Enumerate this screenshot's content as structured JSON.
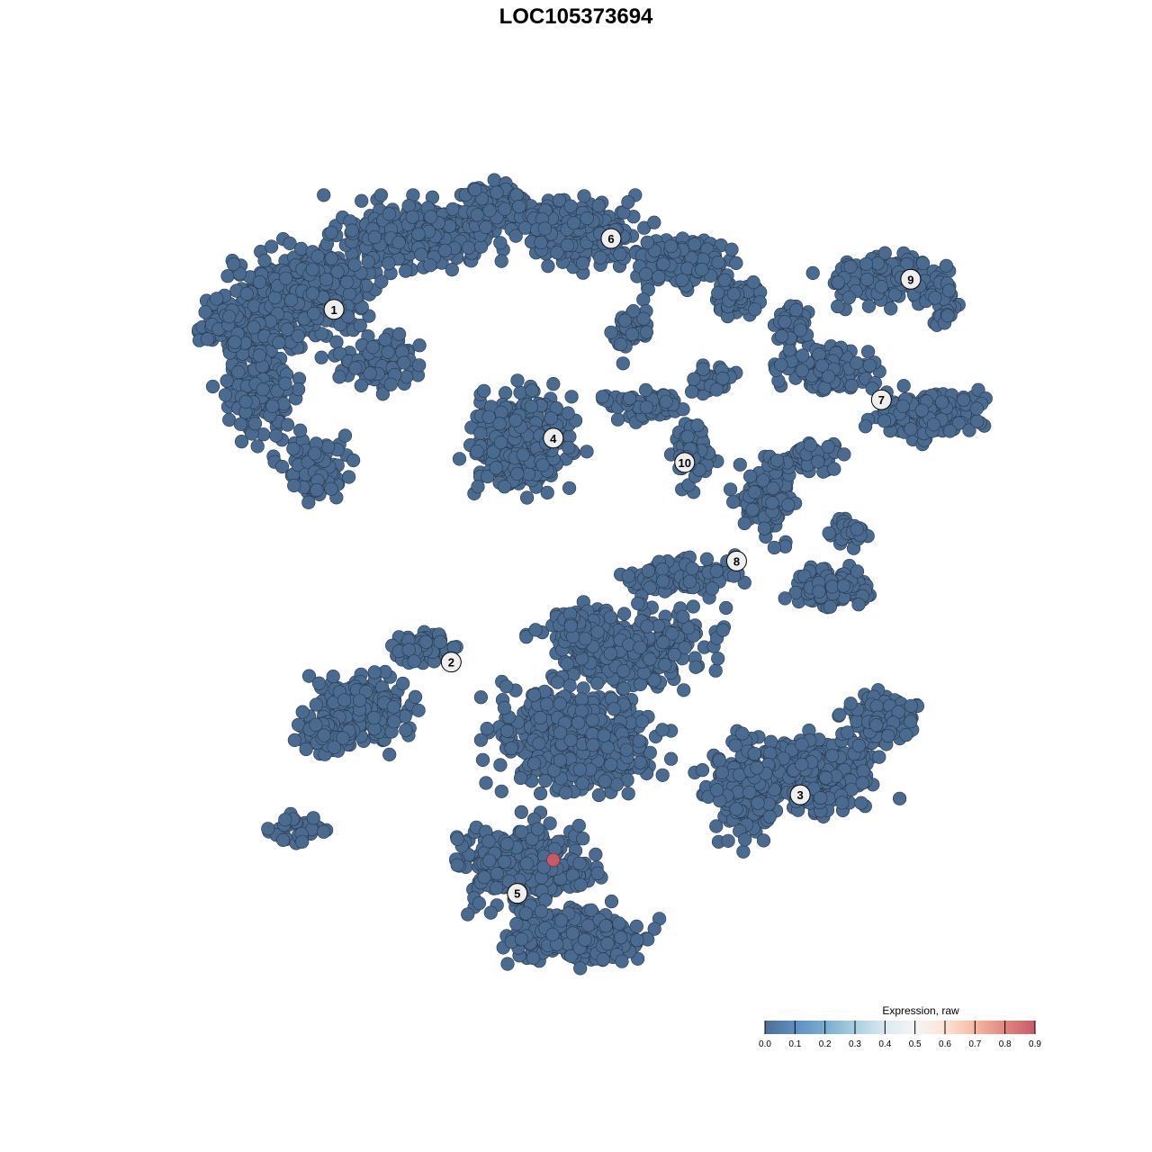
{
  "chart_data": {
    "type": "scatter",
    "title": "LOC105373694",
    "xlabel": "",
    "ylabel": "",
    "axes_visible": false,
    "grid": false,
    "point_color_default": "#4b6a8f",
    "highlight_color": "#c85a65",
    "points_summary": {
      "expression_typical": 0.0,
      "highlighted_points": [
        {
          "x": -5.4,
          "y": -35.2,
          "expression": 0.9,
          "cluster": "5"
        }
      ]
    },
    "clusters": [
      {
        "label": "1",
        "x": -31.6,
        "y": 32.4
      },
      {
        "label": "2",
        "x": -17.6,
        "y": -10.9
      },
      {
        "label": "3",
        "x": 24.1,
        "y": -27.2
      },
      {
        "label": "4",
        "x": -5.4,
        "y": 16.6
      },
      {
        "label": "5",
        "x": -9.7,
        "y": -39.3
      },
      {
        "label": "6",
        "x": 1.5,
        "y": 41.1
      },
      {
        "label": "7",
        "x": 33.8,
        "y": 21.3
      },
      {
        "label": "8",
        "x": 16.5,
        "y": 1.5
      },
      {
        "label": "9",
        "x": 37.3,
        "y": 36.1
      },
      {
        "label": "10",
        "x": 10.3,
        "y": 13.6
      }
    ],
    "legend": {
      "title": "Expression, raw",
      "placement": "bottom-right",
      "range": [
        0,
        0.9
      ],
      "ticks": [
        "0.0",
        "0.1",
        "0.2",
        "0.3",
        "0.4",
        "0.5",
        "0.6",
        "0.7",
        "0.8",
        "0.9"
      ],
      "colors": [
        "#4f6e95",
        "#5b8fc2",
        "#78add0",
        "#a8cfe0",
        "#dbe9f1",
        "#f5f5f5",
        "#fde3d6",
        "#f6b8a0",
        "#e1877f",
        "#c85a68"
      ]
    }
  }
}
